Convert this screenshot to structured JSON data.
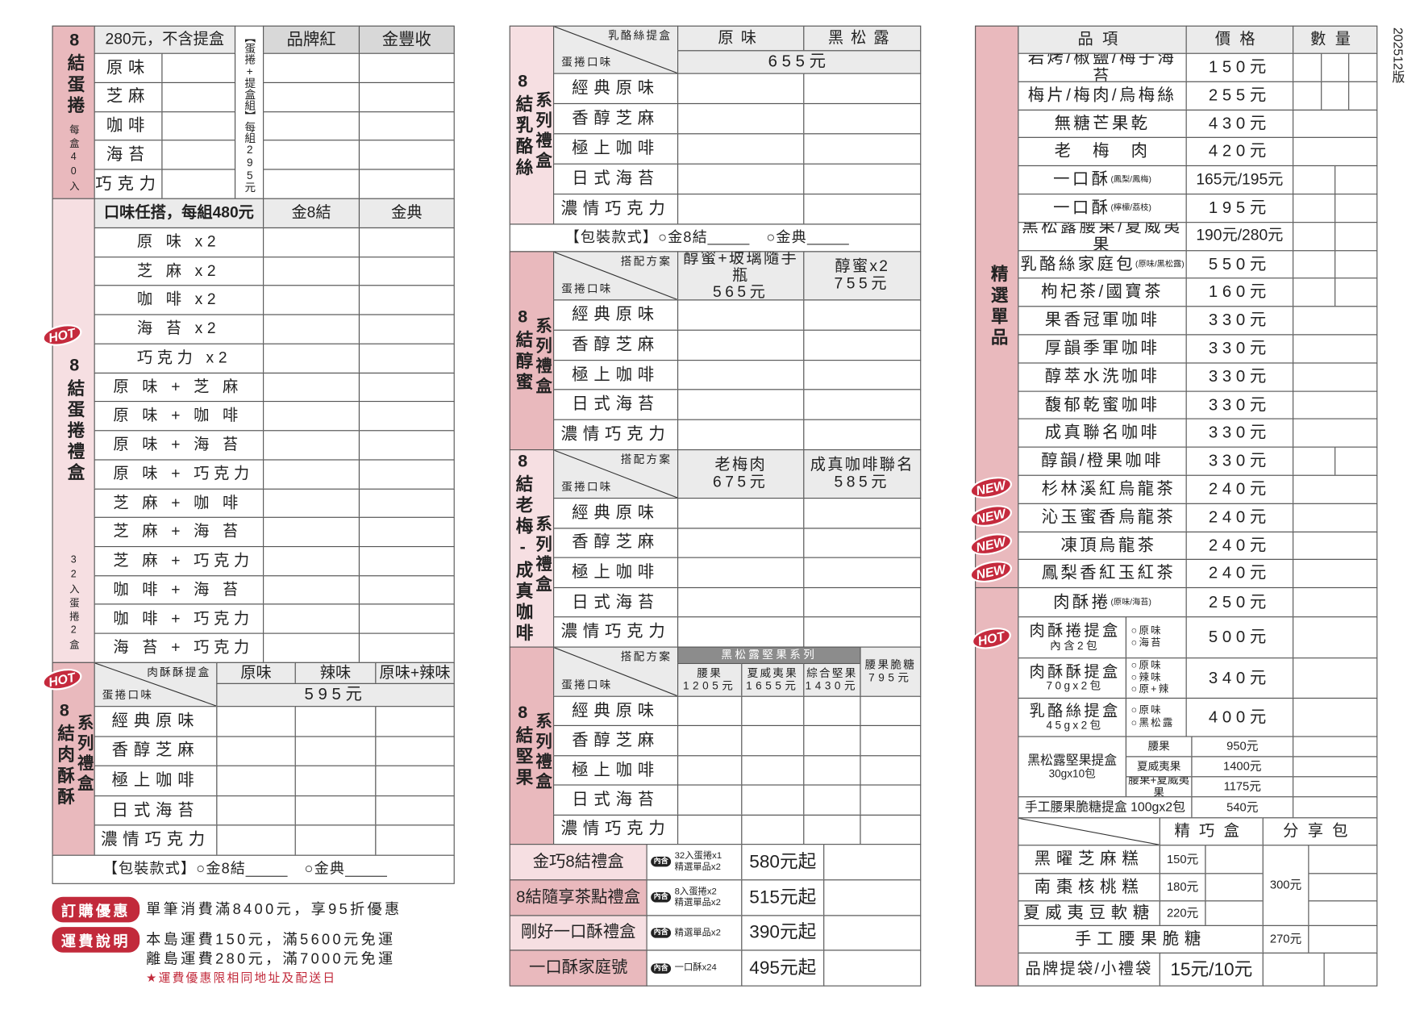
{
  "version": "202512版",
  "badges": {
    "hot": "HOT",
    "new": "NEW"
  },
  "colors": {
    "label_dark": "#e9b9bd",
    "label_light": "#f6dfe2",
    "header": "#ebebeb",
    "accent_red": "#c22a3b"
  },
  "packaging": {
    "label": "【包裝款式】",
    "opt1": "○金8結",
    "opt2": "○金典"
  },
  "egg_rolls": {
    "label": "8結蛋捲",
    "sub": "每盒40入",
    "header": "280元，不含提盒",
    "set_note": "【蛋捲+提盒組】每組295元",
    "cols": [
      "品牌紅",
      "金豐收"
    ],
    "flavors": [
      "原味",
      "芝麻",
      "咖啡",
      "海苔",
      "巧克力"
    ]
  },
  "egg_roll_gift": {
    "label": "8結蛋捲禮盒",
    "sub": "32入蛋捲2盒",
    "header": "口味任搭，每組480元",
    "cols": [
      "金8結",
      "金典"
    ],
    "combos": [
      "原 味 x2",
      "芝 麻 x2",
      "咖 啡 x2",
      "海 苔 x2",
      "巧克力 x2",
      "原 味 + 芝 麻",
      "原 味 + 咖 啡",
      "原 味 + 海 苔",
      "原 味 + 巧克力",
      "芝 麻 + 咖 啡",
      "芝 麻 + 海 苔",
      "芝 麻 + 巧克力",
      "咖 啡 + 海 苔",
      "咖 啡 + 巧克力",
      "海 苔 + 巧克力"
    ]
  },
  "series_flavors": [
    "經典原味",
    "香醇芝麻",
    "極上咖啡",
    "日式海苔",
    "濃情巧克力"
  ],
  "flavor_label": "蛋捲口味",
  "plan_label": "搭配方案",
  "series_label": "系列禮盒",
  "meat_floss": {
    "label": "8結肉酥酥",
    "box_label": "肉酥酥提盒",
    "cols": [
      "原味",
      "辣味",
      "原味+辣味"
    ],
    "price": "595元"
  },
  "cheese": {
    "label": "8結乳酪絲",
    "box_label": "乳酪絲提盒",
    "cols": [
      "原味",
      "黑松露"
    ],
    "price": "655元"
  },
  "honey": {
    "label": "8結醇蜜",
    "options": [
      {
        "name": "醇蜜+玻璃隨手瓶",
        "price": "565元"
      },
      {
        "name": "醇蜜x2",
        "price": "755元"
      }
    ]
  },
  "plum": {
    "label": "8結老梅-成真咖啡",
    "options": [
      {
        "name": "老梅肉",
        "price": "675元"
      },
      {
        "name": "成真咖啡聯名",
        "price": "585元"
      }
    ]
  },
  "nuts": {
    "label": "8結堅果",
    "series_title": "黑松露堅果系列",
    "options": [
      {
        "name": "腰果",
        "price": "1205元"
      },
      {
        "name": "夏威夷果",
        "price": "1655元"
      },
      {
        "name": "綜合堅果",
        "price": "1430元"
      }
    ],
    "extra": {
      "name": "腰果脆糖",
      "price": "795元"
    }
  },
  "gift_badge": "內含",
  "gift_sets": [
    {
      "name": "金巧8結禮盒",
      "contents": [
        "32入蛋捲x1",
        "精選單品x2"
      ],
      "price": "580元起"
    },
    {
      "name": "8結隨享茶點禮盒",
      "contents": [
        "8入蛋捲x2",
        "精選單品x2"
      ],
      "price": "515元起"
    },
    {
      "name": "剛好一口酥禮盒",
      "contents": [
        "精選單品x2"
      ],
      "price": "390元起"
    },
    {
      "name": "一口酥家庭號",
      "contents": [
        "一口酥x24"
      ],
      "price": "495元起"
    }
  ],
  "promo": {
    "order_badge": "訂購優惠",
    "order_text": "單筆消費滿8400元，享95折優惠",
    "ship_badge": "運費說明",
    "ship_lines": [
      "本島運費150元，滿5600元免運",
      "離島運費280元，滿7000元免運"
    ],
    "note": "★運費優惠限相同地址及配送日"
  },
  "singles": {
    "label": "精選單品",
    "headers": [
      "品項",
      "價格",
      "數量"
    ],
    "items": [
      {
        "name": "岩烤/椒鹽/梅子海苔",
        "price": "150元"
      },
      {
        "name": "梅片/梅肉/烏梅絲",
        "price": "255元"
      },
      {
        "name": "無糖芒果乾",
        "price": "430元"
      },
      {
        "name": "老　梅　肉",
        "price": "420元"
      },
      {
        "name": "一口酥",
        "note": "(鳳梨/鳳梅)",
        "price": "165元/195元"
      },
      {
        "name": "一口酥",
        "note": "(檸檬/荔枝)",
        "price": "195元"
      },
      {
        "name": "黑松露腰果/夏威夷果",
        "price": "190元/280元"
      },
      {
        "name": "乳酪絲家庭包",
        "note": "(原味/黑松露)",
        "price": "550元"
      },
      {
        "name": "枸杞茶/國寶茶",
        "price": "160元"
      },
      {
        "name": "果香冠軍咖啡",
        "price": "330元"
      },
      {
        "name": "厚韻季軍咖啡",
        "price": "330元"
      },
      {
        "name": "醇萃水洗咖啡",
        "price": "330元"
      },
      {
        "name": "馥郁乾蜜咖啡",
        "price": "330元"
      },
      {
        "name": "成真聯名咖啡",
        "price": "330元"
      },
      {
        "name": "醇韻/橙果咖啡",
        "price": "330元"
      },
      {
        "name": "杉林溪紅烏龍茶",
        "price": "240元",
        "badge": "NEW"
      },
      {
        "name": "沁玉蜜香烏龍茶",
        "price": "240元",
        "badge": "NEW"
      },
      {
        "name": "凍頂烏龍茶",
        "price": "240元",
        "badge": "NEW"
      },
      {
        "name": "鳳梨香紅玉紅茶",
        "price": "240元",
        "badge": "NEW"
      }
    ],
    "meat_roll": {
      "name": "肉酥捲",
      "note": "(原味/海苔)",
      "price": "250元"
    },
    "boxes": [
      {
        "name": "肉酥捲提盒",
        "sub": "內含2包",
        "options": [
          "○原味",
          "○海苔"
        ],
        "price": "500元"
      },
      {
        "name": "肉酥酥提盒",
        "sub": "70gx2包",
        "options": [
          "○原味",
          "○辣味",
          "○原+辣"
        ],
        "price": "340元"
      },
      {
        "name": "乳酪絲提盒",
        "sub": "45gx2包",
        "options": [
          "○原味",
          "○黑松露"
        ],
        "price": "400元"
      }
    ],
    "nut_box": {
      "name": "黑松露堅果提盒",
      "sub": "30gx10包",
      "options": [
        {
          "name": "腰果",
          "price": "950元"
        },
        {
          "name": "夏威夷果",
          "price": "1400元"
        },
        {
          "name": "腰果+夏威夷果",
          "price": "1175元"
        }
      ]
    },
    "brittle_box": {
      "name": "手工腰果脆糖提盒 100gx2包",
      "price": "540元"
    }
  },
  "snacks": {
    "headers": [
      "精巧盒",
      "分享包"
    ],
    "items": [
      {
        "name": "黑曜芝麻糕",
        "price": "150元"
      },
      {
        "name": "南棗核桃糕",
        "price": "180元"
      },
      {
        "name": "夏威夷豆軟糖",
        "price": "220元"
      }
    ],
    "share_price": "300元",
    "brittle": {
      "name": "手工腰果脆糖",
      "price": "270元"
    },
    "bags": {
      "name": "品牌提袋/小禮袋",
      "price": "15元/10元"
    }
  }
}
